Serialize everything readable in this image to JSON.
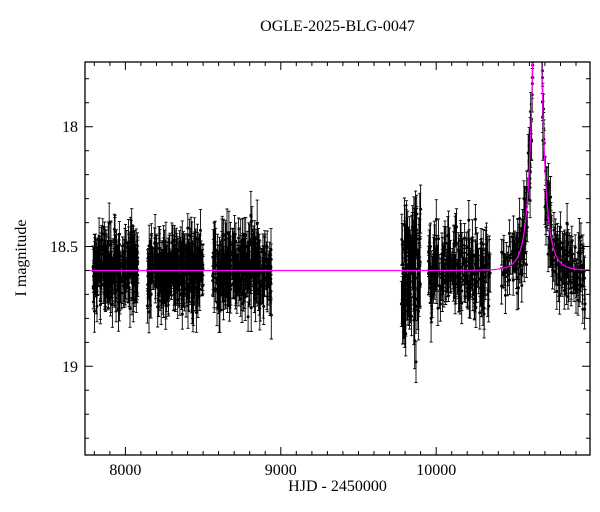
{
  "chart_data": {
    "type": "scatter",
    "title": "OGLE-2025-BLG-0047",
    "xlabel": "HJD - 2450000",
    "ylabel": "I magnitude",
    "xlim": [
      7740,
      10990
    ],
    "ylim": [
      17.73,
      19.37
    ],
    "y_axis_inverted": true,
    "x_major_ticks": [
      8000,
      9000,
      10000
    ],
    "x_minor_step": 100,
    "y_major_ticks": [
      18,
      18.5,
      19
    ],
    "y_minor_step": 0.1,
    "grid": false,
    "legend": false,
    "baseline_mag": 18.6,
    "point_color": "#000000",
    "model_color": "#ff00ff",
    "model": {
      "type": "pspl-microlensing",
      "t0": 10650,
      "tE": 60,
      "u0": 0.03
    },
    "seasons": [
      {
        "t_start": 7790,
        "t_end": 8080,
        "n": 260,
        "sigma": 0.07,
        "err": 0.08
      },
      {
        "t_start": 8140,
        "t_end": 8500,
        "n": 300,
        "sigma": 0.07,
        "err": 0.08
      },
      {
        "t_start": 8560,
        "t_end": 8940,
        "n": 300,
        "sigma": 0.07,
        "err": 0.08
      },
      {
        "t_start": 9770,
        "t_end": 9900,
        "n": 110,
        "sigma": 0.14,
        "err": 0.1
      },
      {
        "t_start": 9950,
        "t_end": 10350,
        "n": 220,
        "sigma": 0.08,
        "err": 0.08
      },
      {
        "t_start": 10420,
        "t_end": 10960,
        "n": 280,
        "sigma": 0.07,
        "err": 0.07
      }
    ]
  }
}
